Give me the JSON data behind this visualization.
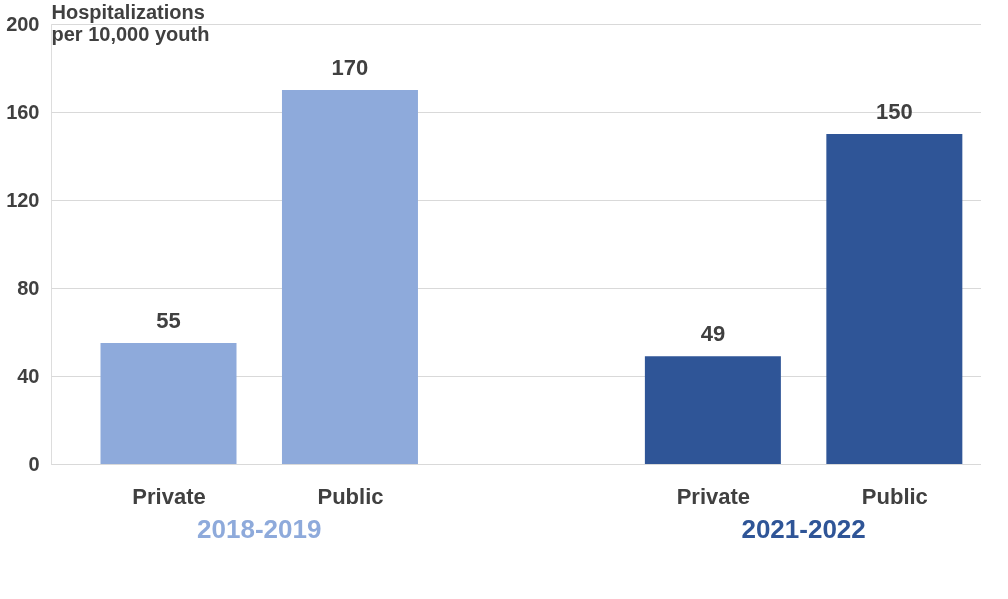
{
  "chart_data": {
    "type": "bar",
    "ylabel": "Hospitalizations per 10,000 youth",
    "categories": [
      "Private",
      "Public",
      null,
      "Private",
      "Public"
    ],
    "series": [
      {
        "name": "2018-2019",
        "color": "#8eaadb",
        "values": [
          55,
          170,
          null,
          null,
          null
        ]
      },
      {
        "name": "2021-2022",
        "color": "#2f5597",
        "values": [
          null,
          null,
          null,
          49,
          150
        ]
      }
    ],
    "ylim": [
      0,
      200
    ],
    "yticks": [
      0,
      40,
      80,
      120,
      160,
      200
    ],
    "grid": "y",
    "data_labels": true,
    "legend": false
  }
}
